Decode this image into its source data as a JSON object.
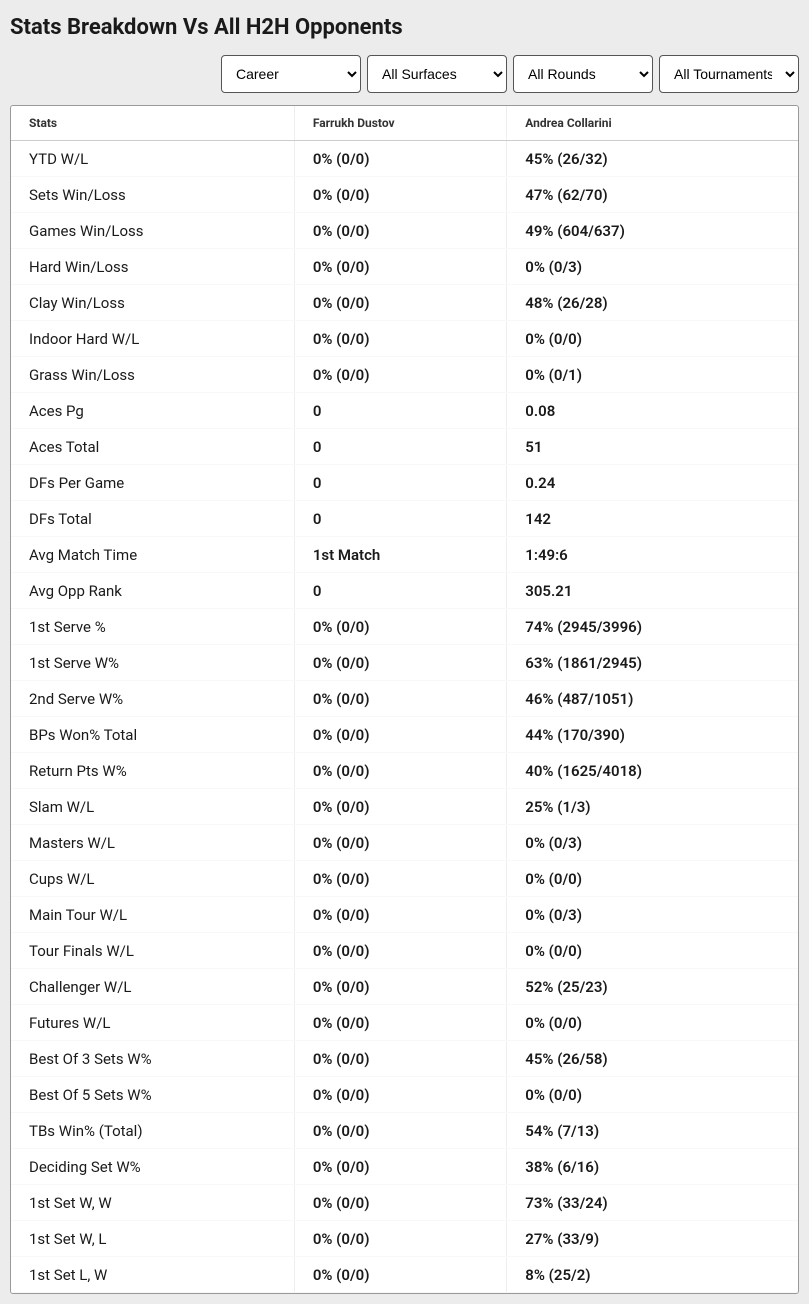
{
  "title": "Stats Breakdown Vs All H2H Opponents",
  "filters": {
    "career": "Career",
    "surfaces": "All Surfaces",
    "rounds": "All Rounds",
    "tournaments": "All Tournaments"
  },
  "columns": {
    "stats": "Stats",
    "player1": "Farrukh Dustov",
    "player2": "Andrea Collarini"
  },
  "rows": [
    {
      "stat": "YTD W/L",
      "p1": "0% (0/0)",
      "p2": "45% (26/32)"
    },
    {
      "stat": "Sets Win/Loss",
      "p1": "0% (0/0)",
      "p2": "47% (62/70)"
    },
    {
      "stat": "Games Win/Loss",
      "p1": "0% (0/0)",
      "p2": "49% (604/637)"
    },
    {
      "stat": "Hard Win/Loss",
      "p1": "0% (0/0)",
      "p2": "0% (0/3)"
    },
    {
      "stat": "Clay Win/Loss",
      "p1": "0% (0/0)",
      "p2": "48% (26/28)"
    },
    {
      "stat": "Indoor Hard W/L",
      "p1": "0% (0/0)",
      "p2": "0% (0/0)"
    },
    {
      "stat": "Grass Win/Loss",
      "p1": "0% (0/0)",
      "p2": "0% (0/1)"
    },
    {
      "stat": "Aces Pg",
      "p1": "0",
      "p2": "0.08"
    },
    {
      "stat": "Aces Total",
      "p1": "0",
      "p2": "51"
    },
    {
      "stat": "DFs Per Game",
      "p1": "0",
      "p2": "0.24"
    },
    {
      "stat": "DFs Total",
      "p1": "0",
      "p2": "142"
    },
    {
      "stat": "Avg Match Time",
      "p1": "1st Match",
      "p2": "1:49:6"
    },
    {
      "stat": "Avg Opp Rank",
      "p1": "0",
      "p2": "305.21"
    },
    {
      "stat": "1st Serve %",
      "p1": "0% (0/0)",
      "p2": "74% (2945/3996)"
    },
    {
      "stat": "1st Serve W%",
      "p1": "0% (0/0)",
      "p2": "63% (1861/2945)"
    },
    {
      "stat": "2nd Serve W%",
      "p1": "0% (0/0)",
      "p2": "46% (487/1051)"
    },
    {
      "stat": "BPs Won% Total",
      "p1": "0% (0/0)",
      "p2": "44% (170/390)"
    },
    {
      "stat": "Return Pts W%",
      "p1": "0% (0/0)",
      "p2": "40% (1625/4018)"
    },
    {
      "stat": "Slam W/L",
      "p1": "0% (0/0)",
      "p2": "25% (1/3)"
    },
    {
      "stat": "Masters W/L",
      "p1": "0% (0/0)",
      "p2": "0% (0/3)"
    },
    {
      "stat": "Cups W/L",
      "p1": "0% (0/0)",
      "p2": "0% (0/0)"
    },
    {
      "stat": "Main Tour W/L",
      "p1": "0% (0/0)",
      "p2": "0% (0/3)"
    },
    {
      "stat": "Tour Finals W/L",
      "p1": "0% (0/0)",
      "p2": "0% (0/0)"
    },
    {
      "stat": "Challenger W/L",
      "p1": "0% (0/0)",
      "p2": "52% (25/23)"
    },
    {
      "stat": "Futures W/L",
      "p1": "0% (0/0)",
      "p2": "0% (0/0)"
    },
    {
      "stat": "Best Of 3 Sets W%",
      "p1": "0% (0/0)",
      "p2": "45% (26/58)"
    },
    {
      "stat": "Best Of 5 Sets W%",
      "p1": "0% (0/0)",
      "p2": "0% (0/0)"
    },
    {
      "stat": "TBs Win% (Total)",
      "p1": "0% (0/0)",
      "p2": "54% (7/13)"
    },
    {
      "stat": "Deciding Set W%",
      "p1": "0% (0/0)",
      "p2": "38% (6/16)"
    },
    {
      "stat": "1st Set W, W",
      "p1": "0% (0/0)",
      "p2": "73% (33/24)"
    },
    {
      "stat": "1st Set W, L",
      "p1": "0% (0/0)",
      "p2": "27% (33/9)"
    },
    {
      "stat": "1st Set L, W",
      "p1": "0% (0/0)",
      "p2": "8% (25/2)"
    }
  ]
}
